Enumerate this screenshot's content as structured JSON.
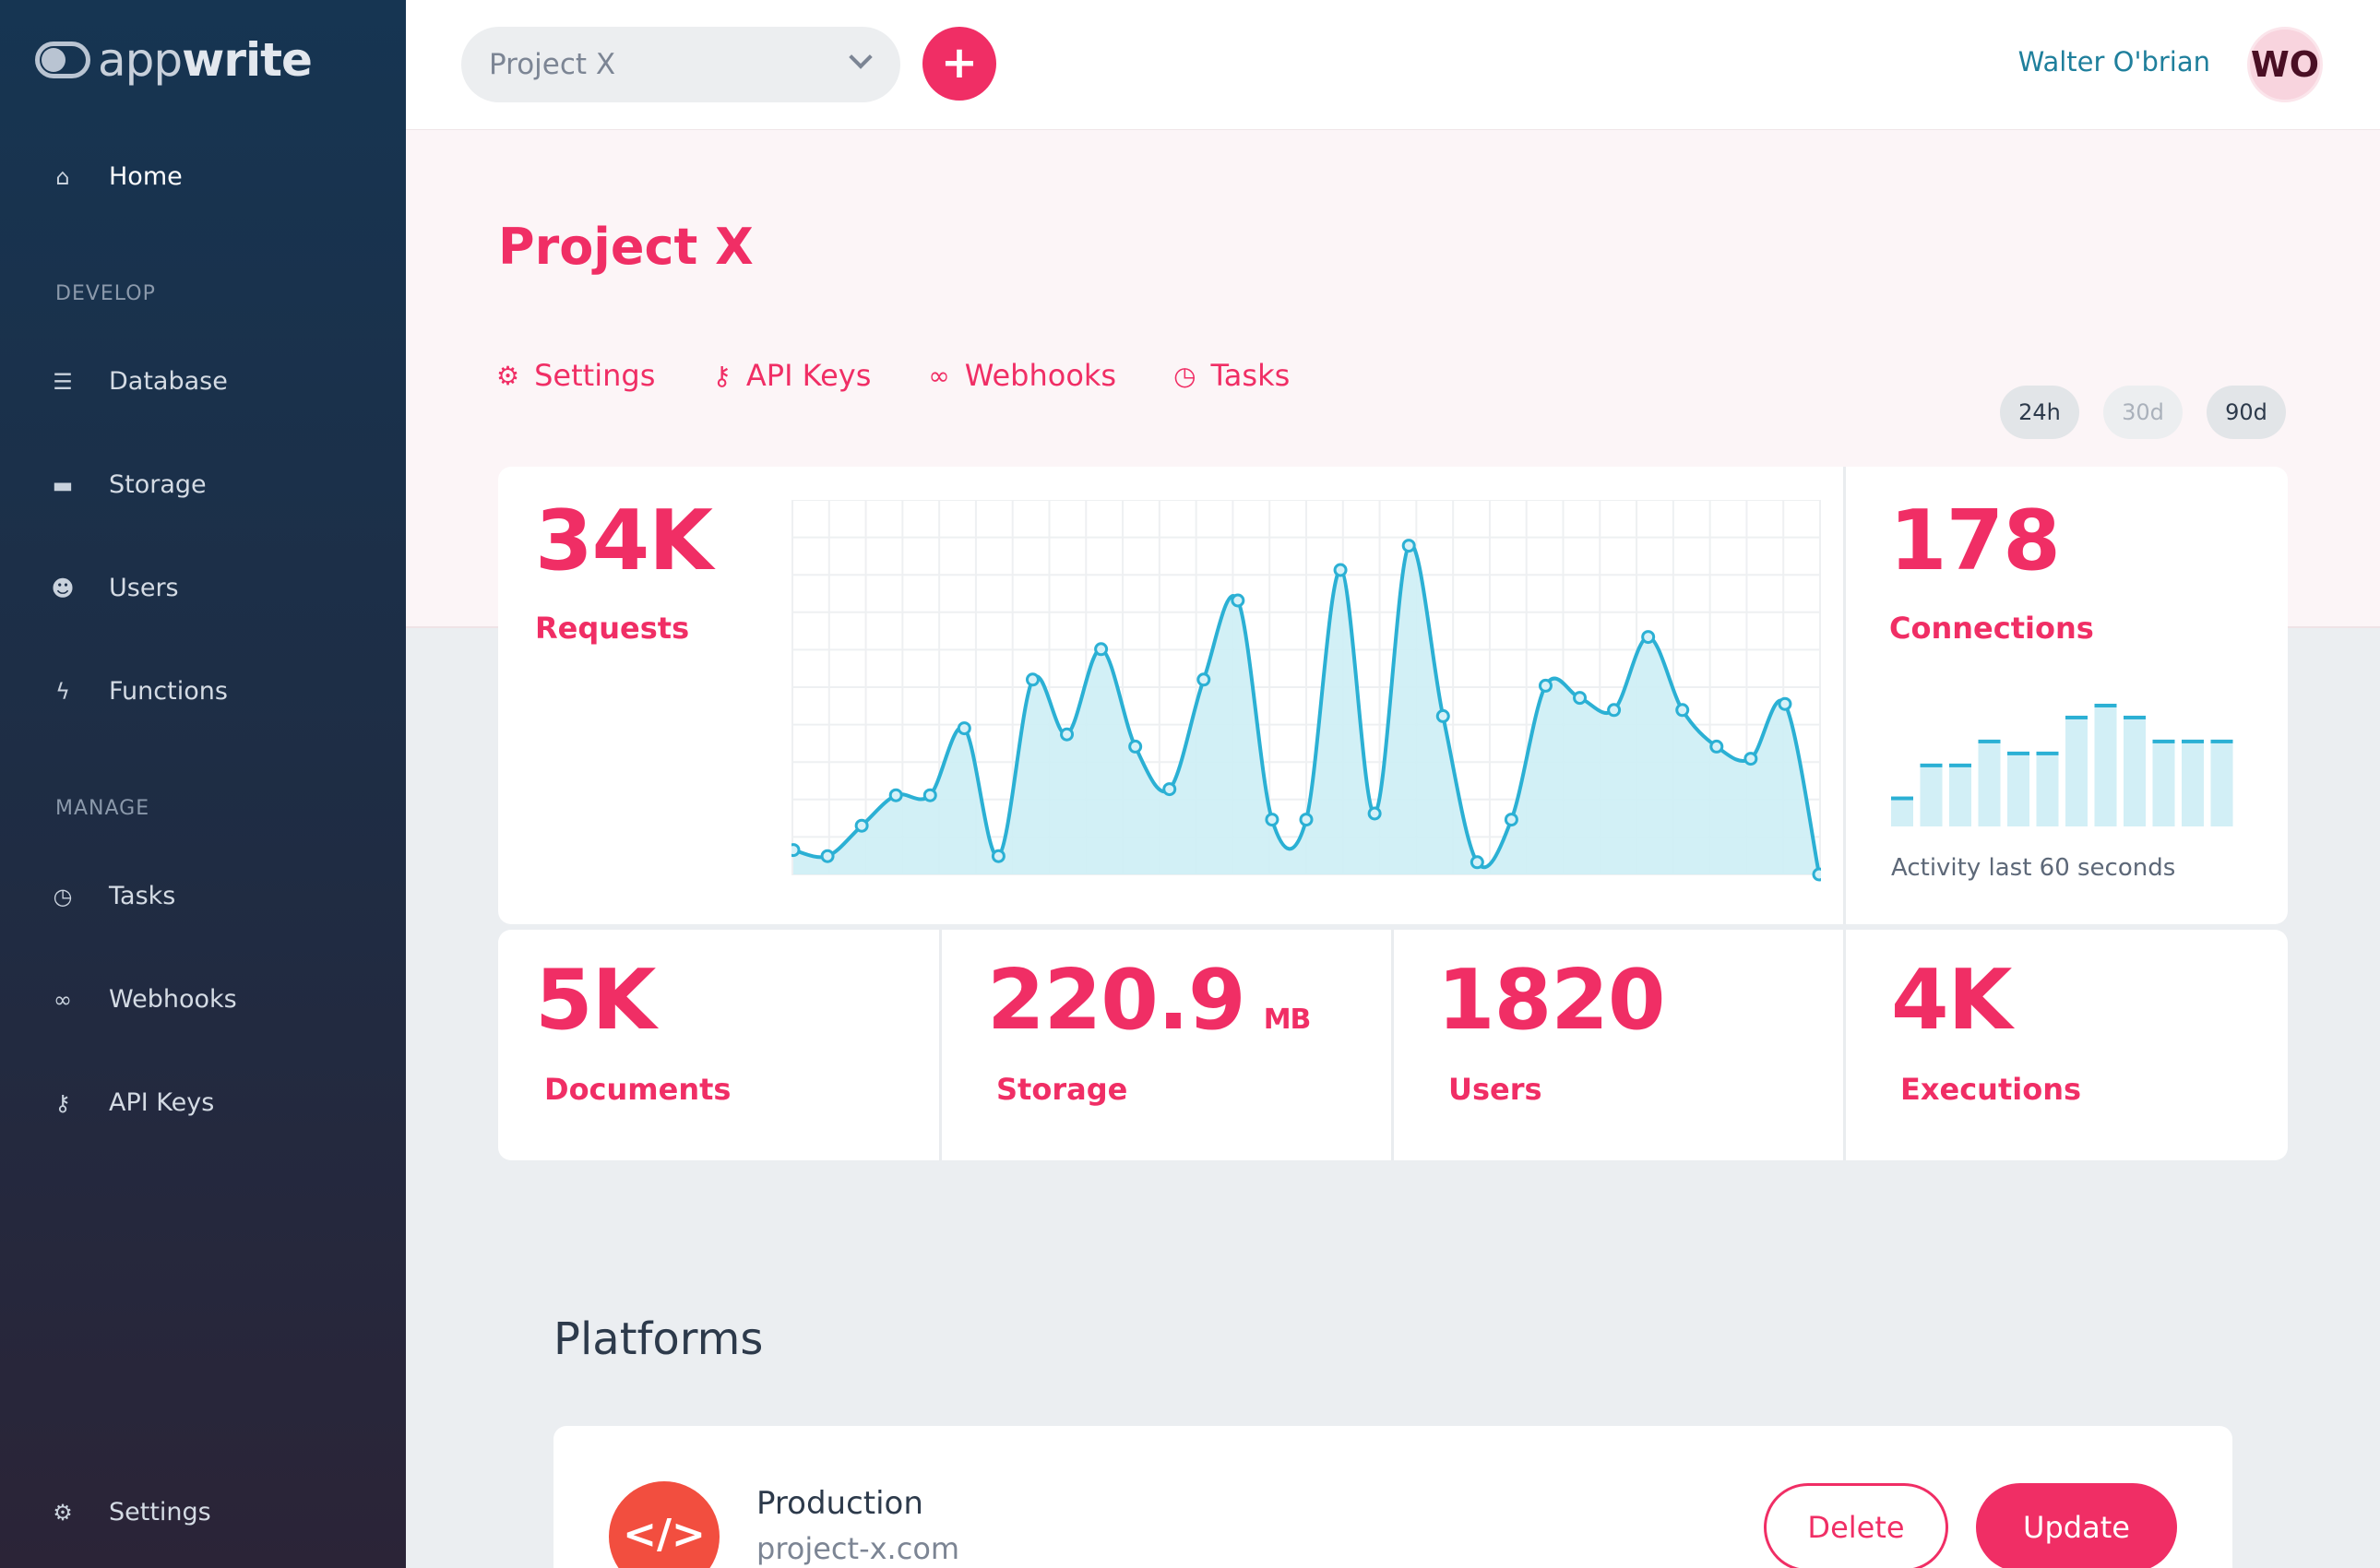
{
  "app": {
    "logo_light": "app",
    "logo_bold": "write"
  },
  "sidebar": {
    "home": "Home",
    "section_develop": "DEVELOP",
    "develop_items": [
      "Database",
      "Storage",
      "Users",
      "Functions"
    ],
    "section_manage": "MANAGE",
    "manage_items": [
      "Tasks",
      "Webhooks",
      "API Keys"
    ],
    "settings": "Settings"
  },
  "topbar": {
    "project_select": "Project X",
    "add_label": "+",
    "user_name": "Walter O'brian",
    "avatar_initials": "WO"
  },
  "page": {
    "title": "Project X",
    "tabs": [
      "Settings",
      "API Keys",
      "Webhooks",
      "Tasks"
    ],
    "ranges": [
      "24h",
      "30d",
      "90d"
    ]
  },
  "stats": {
    "requests": {
      "value": "34K",
      "label": "Requests"
    },
    "connections": {
      "value": "178",
      "label": "Connections",
      "caption": "Activity last 60 seconds"
    },
    "documents": {
      "value": "5K",
      "label": "Documents"
    },
    "storage": {
      "value": "220.9",
      "unit": "MB",
      "label": "Storage"
    },
    "users": {
      "value": "1820",
      "label": "Users"
    },
    "executions": {
      "value": "4K",
      "label": "Executions"
    }
  },
  "platforms": {
    "title": "Platforms",
    "item": {
      "name": "Production",
      "host": "project-x.com",
      "icon": "</>"
    },
    "delete_label": "Delete",
    "update_label": "Update"
  },
  "colors": {
    "accent": "#f02e65",
    "chart_line": "#2bb0d4",
    "chart_fill": "#cdeef5",
    "sidebar_top": "#163552",
    "sidebar_bottom": "#2b2437"
  },
  "chart_data": [
    {
      "type": "area",
      "series": [
        {
          "values": [
            2,
            1.5,
            4,
            6.5,
            6.5,
            12,
            1.5,
            16,
            11.5,
            18.5,
            10.5,
            7,
            16,
            22.5,
            4.5,
            4.5,
            25,
            5,
            27,
            13,
            1,
            4.5,
            15.5,
            14.5,
            13.5,
            19.5,
            13.5,
            10.5,
            9.5,
            14,
            0
          ]
        }
      ],
      "ylim": [
        0,
        30
      ],
      "grid": true
    },
    {
      "type": "bar",
      "series": [
        {
          "values": [
            1,
            2.1,
            2.1,
            2.9,
            2.5,
            2.5,
            3.7,
            4.1,
            3.7,
            2.9,
            2.9,
            2.9
          ]
        }
      ],
      "ylim": [
        0,
        4.5
      ]
    }
  ]
}
